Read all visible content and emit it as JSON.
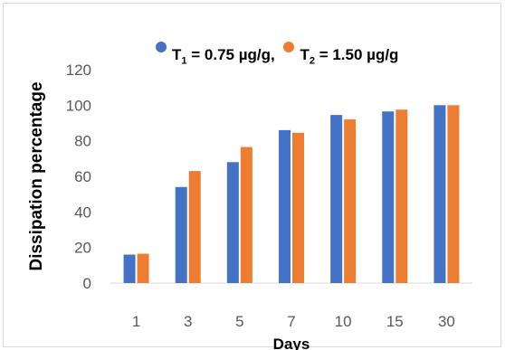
{
  "chart_data": {
    "type": "bar",
    "categories": [
      "1",
      "3",
      "5",
      "7",
      "10",
      "15",
      "30"
    ],
    "series": [
      {
        "name": "T1 = 0.75 µg/g",
        "values": [
          16,
          54,
          68,
          86,
          94.5,
          96.5,
          100
        ]
      },
      {
        "name": "T2 = 1.50 µg/g",
        "values": [
          16.5,
          63,
          76.5,
          84.5,
          92,
          97.5,
          100
        ]
      }
    ],
    "title": "",
    "xlabel": "Days",
    "ylabel": "Dissipation percentage",
    "ylim": [
      0,
      120
    ],
    "yticks": [
      "0",
      "20",
      "40",
      "60",
      "80",
      "100",
      "120"
    ],
    "grid": false,
    "legend_position": "top",
    "colors": [
      "#4472c4",
      "#ed7d31"
    ]
  },
  "legend": {
    "t1_letter": "T",
    "t1_sub": "1",
    "t1_rest": " = 0.75 µg/g,",
    "t2_letter": "T",
    "t2_sub": "2",
    "t2_rest": " = 1.50 µg/g"
  }
}
